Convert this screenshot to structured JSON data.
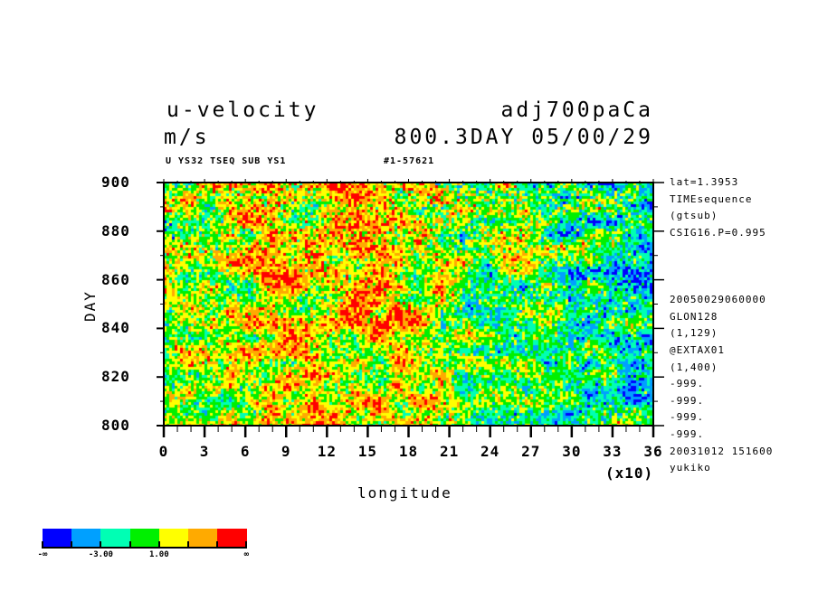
{
  "header": {
    "title_left": "u-velocity",
    "title_right": "adj700paCa",
    "units": "m/s",
    "time_label": "800.3DAY 05/00/29",
    "sub_left": "U YS32 TSEQ SUB YS1",
    "sub_right": "#1-57621"
  },
  "side_info": [
    "lat=1.3953",
    "TIMEsequence",
    "(gtsub)",
    "CSIG16.P=0.995",
    "",
    "",
    "",
    "20050029060000",
    "GLON128",
    "(1,129)",
    "@EXTAX01",
    "(1,400)",
    "-999.",
    "-999.",
    "-999.",
    "-999.",
    "20031012 151600",
    "yukiko"
  ],
  "chart_data": {
    "type": "heatmap",
    "title": "u-velocity",
    "units": "m/s",
    "xlabel": "longitude",
    "x_multiplier": "(x10)",
    "ylabel": "DAY",
    "xlim": [
      0,
      36
    ],
    "ylim": [
      800,
      900
    ],
    "x_ticks": [
      "0",
      "3",
      "6",
      "9",
      "12",
      "15",
      "18",
      "21",
      "24",
      "27",
      "30",
      "33",
      "36"
    ],
    "y_ticks": [
      "800",
      "820",
      "840",
      "860",
      "880",
      "900"
    ],
    "colorbar": {
      "colors": [
        "#0000ff",
        "#00a0ff",
        "#00ffb4",
        "#00f000",
        "#ffff00",
        "#ffaa00",
        "#ff0000"
      ],
      "labels": [
        "-∞",
        "-3.00",
        "1.00",
        "∞"
      ]
    }
  }
}
